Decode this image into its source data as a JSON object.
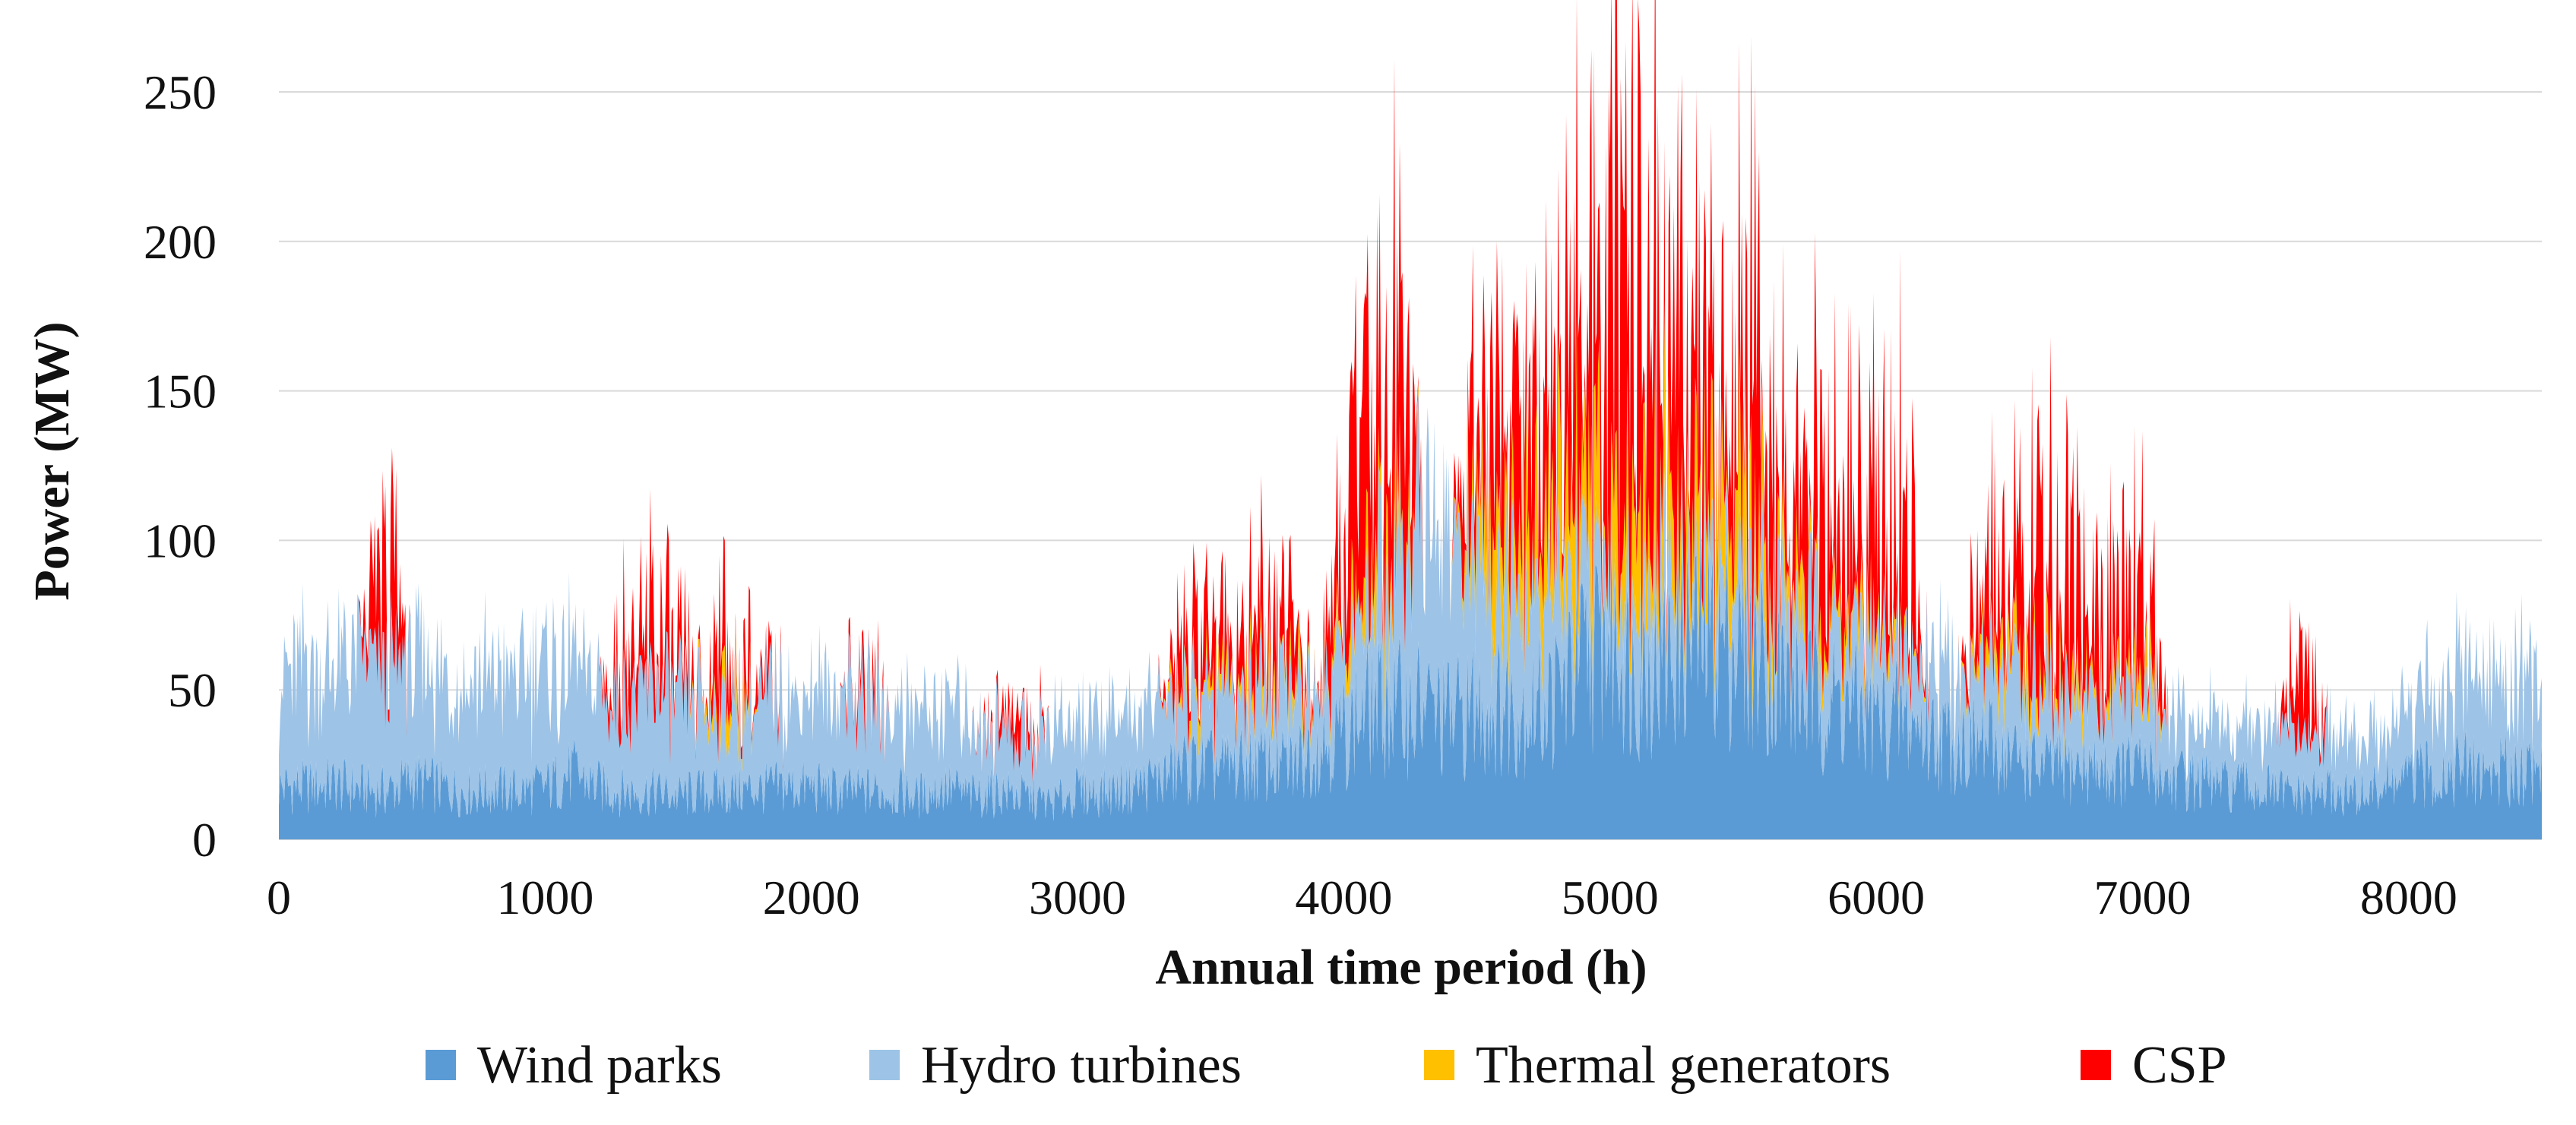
{
  "chart_data": {
    "type": "area",
    "stacked": true,
    "title": "",
    "xlabel": "Annual time period (h)",
    "ylabel": "Power (MW)",
    "xlim": [
      0,
      8500
    ],
    "ylim": [
      0,
      250
    ],
    "x_ticks": [
      0,
      1000,
      2000,
      3000,
      4000,
      5000,
      6000,
      7000,
      8000
    ],
    "y_ticks": [
      0,
      50,
      100,
      150,
      200,
      250
    ],
    "grid": "horizontal",
    "legend_position": "bottom",
    "x_step": 100,
    "x_note": "values sampled every 100 h from 0 to 8500 h (approximate envelope of hourly data)",
    "series": [
      {
        "name": "Wind parks",
        "color": "#5b9bd5",
        "values": [
          22,
          22,
          23,
          21,
          20,
          25,
          22,
          20,
          21,
          20,
          22,
          28,
          22,
          20,
          20,
          18,
          20,
          20,
          21,
          22,
          22,
          20,
          20,
          20,
          18,
          22,
          18,
          20,
          18,
          15,
          20,
          20,
          22,
          25,
          30,
          30,
          30,
          32,
          30,
          40,
          45,
          55,
          55,
          55,
          50,
          55,
          55,
          55,
          60,
          75,
          85,
          70,
          75,
          85,
          85,
          80,
          75,
          60,
          60,
          55,
          50,
          50,
          45,
          40,
          40,
          35,
          30,
          30,
          30,
          28,
          30,
          25,
          25,
          22,
          22,
          20,
          18,
          20,
          18,
          22,
          25,
          28,
          30,
          28,
          30,
          30
        ]
      },
      {
        "name": "Hydro turbines",
        "color": "#9dc3e6",
        "values": [
          45,
          50,
          48,
          55,
          50,
          50,
          45,
          50,
          48,
          48,
          50,
          45,
          40,
          40,
          45,
          40,
          35,
          35,
          35,
          38,
          40,
          40,
          40,
          38,
          35,
          35,
          30,
          28,
          25,
          30,
          30,
          30,
          30,
          30,
          30,
          30,
          30,
          30,
          32,
          30,
          35,
          45,
          60,
          80,
          75,
          60,
          55,
          50,
          40,
          35,
          30,
          35,
          35,
          25,
          25,
          30,
          30,
          40,
          30,
          30,
          28,
          30,
          35,
          35,
          30,
          32,
          30,
          30,
          32,
          30,
          28,
          28,
          25,
          25,
          25,
          25,
          24,
          24,
          20,
          25,
          28,
          35,
          40,
          40,
          40,
          40
        ]
      },
      {
        "name": "Thermal generators",
        "color": "#ffc000",
        "values": [
          0,
          0,
          0,
          0,
          0,
          0,
          0,
          0,
          0,
          0,
          0,
          0,
          0,
          0,
          0,
          0,
          2,
          8,
          0,
          0,
          0,
          0,
          0,
          0,
          0,
          0,
          0,
          0,
          0,
          0,
          0,
          0,
          0,
          0,
          5,
          8,
          8,
          10,
          8,
          0,
          8,
          15,
          12,
          0,
          0,
          15,
          25,
          30,
          35,
          25,
          35,
          25,
          30,
          28,
          30,
          25,
          15,
          12,
          8,
          10,
          5,
          5,
          0,
          0,
          5,
          10,
          8,
          8,
          5,
          5,
          10,
          0,
          0,
          0,
          0,
          0,
          0,
          0,
          0,
          0,
          0,
          0,
          0,
          0,
          0,
          0
        ]
      },
      {
        "name": "CSP",
        "color": "#ff0000",
        "values": [
          0,
          0,
          0,
          0,
          45,
          0,
          0,
          0,
          0,
          0,
          0,
          0,
          0,
          20,
          30,
          20,
          0,
          40,
          15,
          0,
          0,
          0,
          10,
          0,
          0,
          0,
          0,
          5,
          10,
          0,
          0,
          0,
          0,
          0,
          20,
          25,
          20,
          25,
          20,
          0,
          40,
          60,
          70,
          0,
          0,
          50,
          60,
          40,
          55,
          70,
          80,
          90,
          75,
          60,
          55,
          70,
          55,
          45,
          60,
          55,
          50,
          60,
          0,
          0,
          35,
          40,
          60,
          45,
          40,
          40,
          50,
          0,
          0,
          0,
          0,
          0,
          30,
          0,
          0,
          0,
          0,
          0,
          0,
          0,
          0,
          0
        ]
      }
    ]
  }
}
